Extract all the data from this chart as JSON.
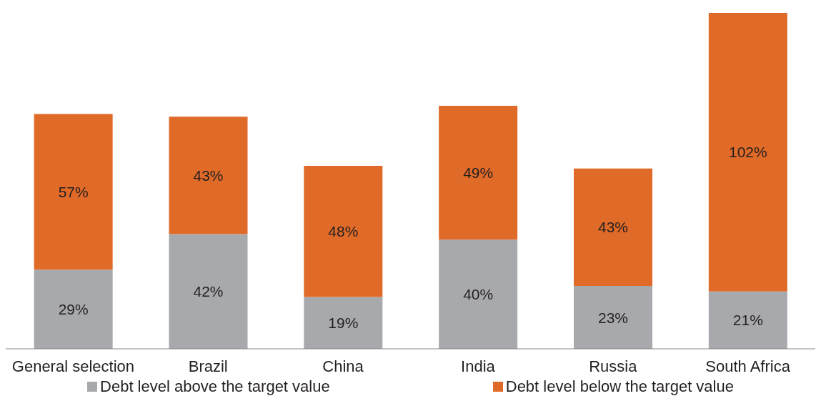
{
  "chart_data": {
    "type": "bar",
    "stacked": true,
    "legend": "bottom",
    "grid": false,
    "categories": [
      "General selection",
      "Brazil",
      "China",
      "India",
      "Russia",
      "South Africa"
    ],
    "series": [
      {
        "name": "Debt level above the target value",
        "color": "#a7a9ac",
        "values": [
          29,
          42,
          19,
          40,
          23,
          21
        ],
        "value_labels": [
          "29%",
          "42%",
          "19%",
          "40%",
          "23%",
          "21%"
        ]
      },
      {
        "name": "Debt level below the target value",
        "color": "#e06a28",
        "values": [
          57,
          43,
          48,
          49,
          43,
          102
        ],
        "value_labels": [
          "57%",
          "43%",
          "48%",
          "49%",
          "43%",
          "102%"
        ]
      }
    ]
  }
}
